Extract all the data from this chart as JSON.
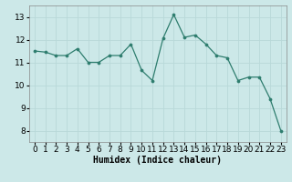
{
  "x": [
    0,
    1,
    2,
    3,
    4,
    5,
    6,
    7,
    8,
    9,
    10,
    11,
    12,
    13,
    14,
    15,
    16,
    17,
    18,
    19,
    20,
    21,
    22,
    23
  ],
  "y": [
    11.5,
    11.45,
    11.3,
    11.3,
    11.6,
    11.0,
    11.0,
    11.3,
    11.3,
    11.8,
    10.65,
    10.2,
    12.05,
    13.1,
    12.1,
    12.2,
    11.8,
    11.3,
    11.2,
    10.2,
    10.35,
    10.35,
    9.4,
    8.0
  ],
  "line_color": "#2e7d6e",
  "marker_color": "#2e7d6e",
  "bg_color": "#cce8e8",
  "grid_color": "#b8d8d8",
  "xlabel": "Humidex (Indice chaleur)",
  "ylim": [
    7.5,
    13.5
  ],
  "xlim": [
    -0.5,
    23.5
  ],
  "yticks": [
    8,
    9,
    10,
    11,
    12,
    13
  ],
  "xticks": [
    0,
    1,
    2,
    3,
    4,
    5,
    6,
    7,
    8,
    9,
    10,
    11,
    12,
    13,
    14,
    15,
    16,
    17,
    18,
    19,
    20,
    21,
    22,
    23
  ],
  "xlabel_fontsize": 7,
  "tick_fontsize": 6.5
}
